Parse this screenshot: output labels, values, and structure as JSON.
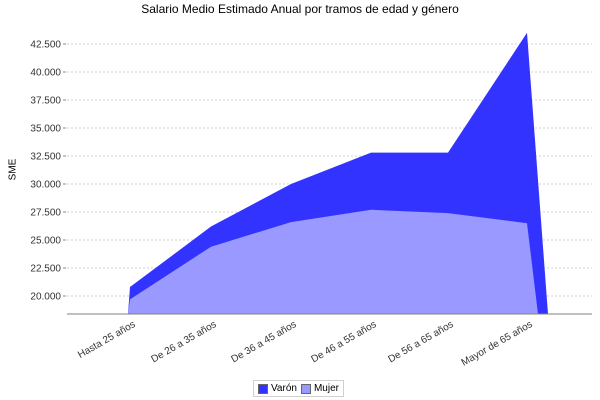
{
  "chart_data": {
    "type": "area",
    "title": "Salario Medio Estimado Anual por tramos de edad y género",
    "xlabel": "",
    "ylabel": "SME",
    "categories": [
      "Hasta 25 años",
      "De 26 a 35 años",
      "De 36 a 45 años",
      "De 46 a 55 años",
      "De 56 a 65 años",
      "Mayor de 65 años"
    ],
    "series": [
      {
        "name": "Varón",
        "color": "#3333ff",
        "values": [
          20800,
          26200,
          30000,
          32800,
          32800,
          43500
        ]
      },
      {
        "name": "Mujer",
        "color": "#9999ff",
        "values": [
          19700,
          24400,
          26600,
          27700,
          27400,
          26500
        ]
      }
    ],
    "yticks": [
      "20.000",
      "22.500",
      "25.000",
      "27.500",
      "30.000",
      "32.500",
      "35.000",
      "37.500",
      "40.000",
      "42.500"
    ],
    "ylim": [
      18400,
      44000
    ],
    "grid": true,
    "legend_position": "bottom"
  },
  "legend": {
    "items": [
      {
        "label": "Varón",
        "color": "#3333ff"
      },
      {
        "label": "Mujer",
        "color": "#9999ff"
      }
    ]
  }
}
